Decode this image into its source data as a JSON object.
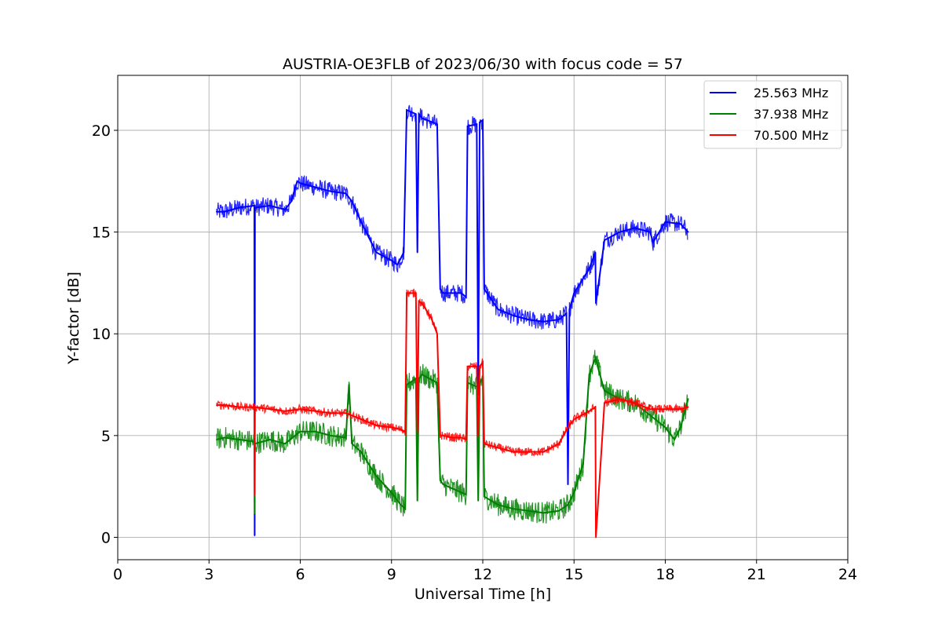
{
  "chart_data": {
    "type": "line",
    "title": "AUSTRIA-OE3FLB of 2023/06/30 with focus code = 57",
    "xlabel": "Universal Time [h]",
    "ylabel": "Y-factor [dB]",
    "xlim": [
      0,
      24
    ],
    "ylim": [
      -1.1,
      22.7
    ],
    "xticks": [
      0,
      3,
      6,
      9,
      12,
      15,
      18,
      21,
      24
    ],
    "yticks": [
      0,
      5,
      10,
      15,
      20
    ],
    "grid": true,
    "legend_position": "top-right",
    "series": [
      {
        "name": "25.563 MHz",
        "color": "#0000ff",
        "x": [
          3.25,
          3.5,
          4.0,
          4.49,
          4.5,
          4.51,
          5.0,
          5.5,
          5.7,
          5.9,
          6.0,
          6.5,
          7.0,
          7.5,
          7.7,
          8.0,
          8.3,
          8.5,
          9.0,
          9.2,
          9.4,
          9.5,
          9.8,
          9.85,
          9.9,
          10.0,
          10.5,
          10.6,
          10.7,
          11.0,
          11.3,
          11.45,
          11.5,
          11.8,
          11.85,
          11.9,
          12.0,
          12.05,
          12.5,
          13.0,
          13.5,
          14.0,
          14.5,
          14.75,
          14.8,
          14.85,
          15.0,
          15.5,
          15.7,
          15.72,
          16.0,
          16.5,
          17.0,
          17.5,
          17.6,
          18.0,
          18.5,
          18.75
        ],
        "y": [
          16.0,
          16.0,
          16.2,
          16.3,
          0.1,
          16.2,
          16.3,
          16.1,
          16.5,
          17.5,
          17.4,
          17.2,
          17.0,
          16.9,
          16.5,
          15.5,
          14.6,
          14.0,
          13.6,
          13.4,
          14.0,
          21.0,
          20.8,
          14.0,
          20.8,
          20.6,
          20.3,
          12.2,
          12.0,
          12.0,
          12.0,
          11.8,
          20.2,
          20.3,
          7.0,
          20.4,
          20.5,
          12.2,
          11.2,
          10.9,
          10.7,
          10.6,
          10.7,
          11.0,
          2.6,
          11.2,
          12.0,
          13.2,
          14.0,
          11.5,
          14.6,
          15.0,
          15.2,
          15.0,
          14.5,
          15.5,
          15.4,
          15.0
        ]
      },
      {
        "name": "37.938 MHz",
        "color": "#008000",
        "x": [
          3.25,
          3.5,
          4.0,
          4.49,
          4.5,
          4.51,
          5.0,
          5.5,
          6.0,
          6.5,
          7.0,
          7.5,
          7.6,
          7.7,
          8.0,
          8.5,
          9.0,
          9.3,
          9.45,
          9.5,
          9.8,
          9.85,
          9.9,
          10.0,
          10.5,
          10.6,
          10.7,
          11.0,
          11.3,
          11.45,
          11.5,
          11.8,
          11.85,
          11.9,
          12.0,
          12.05,
          12.5,
          13.0,
          13.5,
          14.0,
          14.5,
          14.8,
          15.0,
          15.3,
          15.5,
          15.7,
          16.0,
          16.5,
          17.0,
          17.5,
          18.0,
          18.3,
          18.5,
          18.75
        ],
        "y": [
          4.8,
          4.9,
          4.8,
          4.7,
          1.2,
          4.6,
          4.8,
          4.6,
          5.2,
          5.2,
          5.0,
          4.9,
          7.5,
          4.6,
          4.2,
          3.0,
          2.2,
          1.6,
          1.4,
          7.5,
          7.8,
          1.8,
          7.8,
          8.0,
          7.6,
          2.8,
          2.6,
          2.4,
          2.2,
          2.1,
          7.6,
          7.4,
          1.8,
          7.6,
          7.8,
          2.0,
          1.6,
          1.4,
          1.3,
          1.2,
          1.3,
          1.6,
          2.2,
          3.6,
          8.0,
          8.8,
          7.2,
          6.8,
          6.6,
          6.0,
          5.4,
          4.8,
          5.4,
          6.8
        ]
      },
      {
        "name": "70.500 MHz",
        "color": "#ff0000",
        "x": [
          3.25,
          3.5,
          4.0,
          4.49,
          4.5,
          4.51,
          5.0,
          5.5,
          6.0,
          6.5,
          7.0,
          7.5,
          8.0,
          8.5,
          9.0,
          9.3,
          9.45,
          9.5,
          9.8,
          9.85,
          9.9,
          10.0,
          10.3,
          10.5,
          10.6,
          10.7,
          11.0,
          11.3,
          11.45,
          11.5,
          11.8,
          11.85,
          11.9,
          12.0,
          12.05,
          12.5,
          13.0,
          13.5,
          14.0,
          14.5,
          14.8,
          15.0,
          15.5,
          15.7,
          15.72,
          16.0,
          16.5,
          17.0,
          17.5,
          18.0,
          18.5,
          18.75
        ],
        "y": [
          6.5,
          6.5,
          6.4,
          6.4,
          2.2,
          6.4,
          6.3,
          6.2,
          6.3,
          6.2,
          6.1,
          6.1,
          5.8,
          5.5,
          5.4,
          5.3,
          5.2,
          12.0,
          12.0,
          5.2,
          11.6,
          11.5,
          10.8,
          10.0,
          5.0,
          5.0,
          4.9,
          4.9,
          4.8,
          8.4,
          8.4,
          5.0,
          8.4,
          8.6,
          4.6,
          4.4,
          4.2,
          4.2,
          4.2,
          4.6,
          5.4,
          5.8,
          6.2,
          6.4,
          0.0,
          6.6,
          6.8,
          6.6,
          6.3,
          6.3,
          6.3,
          6.4
        ]
      }
    ]
  }
}
